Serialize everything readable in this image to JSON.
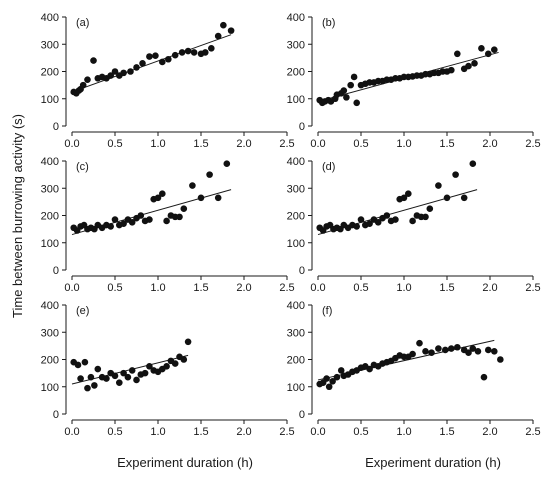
{
  "chart_data": {
    "type": "scatter",
    "shared_ylabel": "Time between burrowing activity (s)",
    "shared_xlabel": "Experiment duration (h)",
    "xlim": [
      0,
      2.5
    ],
    "xticks": [
      "0.0",
      "0.5",
      "1.0",
      "1.5",
      "2.0",
      "2.5"
    ],
    "ylim": [
      0,
      400
    ],
    "yticks": [
      "0",
      "100",
      "200",
      "300",
      "400"
    ],
    "grid": false,
    "panels": [
      {
        "label": "(a)",
        "trendline": [
          [
            0.0,
            125
          ],
          [
            1.85,
            335
          ]
        ],
        "points": [
          [
            0.02,
            125
          ],
          [
            0.05,
            120
          ],
          [
            0.08,
            130
          ],
          [
            0.1,
            135
          ],
          [
            0.13,
            150
          ],
          [
            0.18,
            170
          ],
          [
            0.25,
            240
          ],
          [
            0.3,
            175
          ],
          [
            0.35,
            180
          ],
          [
            0.4,
            175
          ],
          [
            0.45,
            185
          ],
          [
            0.5,
            200
          ],
          [
            0.55,
            185
          ],
          [
            0.6,
            195
          ],
          [
            0.68,
            200
          ],
          [
            0.75,
            215
          ],
          [
            0.82,
            230
          ],
          [
            0.9,
            255
          ],
          [
            0.97,
            258
          ],
          [
            1.05,
            235
          ],
          [
            1.12,
            245
          ],
          [
            1.2,
            260
          ],
          [
            1.28,
            270
          ],
          [
            1.35,
            275
          ],
          [
            1.42,
            270
          ],
          [
            1.5,
            265
          ],
          [
            1.55,
            270
          ],
          [
            1.62,
            285
          ],
          [
            1.7,
            330
          ],
          [
            1.76,
            370
          ],
          [
            1.85,
            350
          ]
        ]
      },
      {
        "label": "(b)",
        "trendline": [
          [
            0.0,
            90
          ],
          [
            2.1,
            270
          ]
        ],
        "points": [
          [
            0.02,
            95
          ],
          [
            0.05,
            85
          ],
          [
            0.08,
            90
          ],
          [
            0.12,
            95
          ],
          [
            0.15,
            90
          ],
          [
            0.2,
            100
          ],
          [
            0.22,
            115
          ],
          [
            0.27,
            120
          ],
          [
            0.3,
            130
          ],
          [
            0.33,
            105
          ],
          [
            0.38,
            150
          ],
          [
            0.42,
            180
          ],
          [
            0.45,
            85
          ],
          [
            0.5,
            150
          ],
          [
            0.55,
            155
          ],
          [
            0.6,
            160
          ],
          [
            0.65,
            160
          ],
          [
            0.7,
            165
          ],
          [
            0.75,
            165
          ],
          [
            0.8,
            170
          ],
          [
            0.85,
            170
          ],
          [
            0.9,
            175
          ],
          [
            0.95,
            175
          ],
          [
            1.0,
            180
          ],
          [
            1.05,
            180
          ],
          [
            1.1,
            182
          ],
          [
            1.15,
            185
          ],
          [
            1.2,
            185
          ],
          [
            1.25,
            190
          ],
          [
            1.3,
            190
          ],
          [
            1.35,
            195
          ],
          [
            1.4,
            195
          ],
          [
            1.45,
            200
          ],
          [
            1.5,
            200
          ],
          [
            1.55,
            205
          ],
          [
            1.62,
            265
          ],
          [
            1.7,
            210
          ],
          [
            1.75,
            220
          ],
          [
            1.82,
            230
          ],
          [
            1.9,
            285
          ],
          [
            1.98,
            265
          ],
          [
            2.05,
            280
          ]
        ]
      },
      {
        "label": "(c)",
        "trendline": [
          [
            0.0,
            130
          ],
          [
            1.85,
            295
          ]
        ],
        "points": [
          [
            0.02,
            155
          ],
          [
            0.06,
            145
          ],
          [
            0.1,
            160
          ],
          [
            0.14,
            165
          ],
          [
            0.18,
            150
          ],
          [
            0.22,
            155
          ],
          [
            0.26,
            150
          ],
          [
            0.3,
            165
          ],
          [
            0.35,
            155
          ],
          [
            0.4,
            165
          ],
          [
            0.45,
            160
          ],
          [
            0.5,
            185
          ],
          [
            0.55,
            165
          ],
          [
            0.6,
            170
          ],
          [
            0.65,
            185
          ],
          [
            0.7,
            175
          ],
          [
            0.75,
            190
          ],
          [
            0.8,
            200
          ],
          [
            0.85,
            180
          ],
          [
            0.9,
            185
          ],
          [
            0.95,
            260
          ],
          [
            1.0,
            265
          ],
          [
            1.05,
            280
          ],
          [
            1.1,
            180
          ],
          [
            1.15,
            200
          ],
          [
            1.2,
            195
          ],
          [
            1.25,
            195
          ],
          [
            1.3,
            225
          ],
          [
            1.4,
            310
          ],
          [
            1.5,
            265
          ],
          [
            1.6,
            350
          ],
          [
            1.7,
            265
          ],
          [
            1.8,
            390
          ]
        ]
      },
      {
        "label": "(d)",
        "trendline": [
          [
            0.0,
            130
          ],
          [
            1.85,
            295
          ]
        ],
        "points": [
          [
            0.02,
            155
          ],
          [
            0.06,
            145
          ],
          [
            0.1,
            160
          ],
          [
            0.14,
            165
          ],
          [
            0.18,
            150
          ],
          [
            0.22,
            155
          ],
          [
            0.26,
            150
          ],
          [
            0.3,
            165
          ],
          [
            0.35,
            155
          ],
          [
            0.4,
            165
          ],
          [
            0.45,
            160
          ],
          [
            0.5,
            185
          ],
          [
            0.55,
            165
          ],
          [
            0.6,
            170
          ],
          [
            0.65,
            185
          ],
          [
            0.7,
            175
          ],
          [
            0.75,
            190
          ],
          [
            0.8,
            200
          ],
          [
            0.85,
            180
          ],
          [
            0.9,
            185
          ],
          [
            0.95,
            260
          ],
          [
            1.0,
            265
          ],
          [
            1.05,
            280
          ],
          [
            1.1,
            180
          ],
          [
            1.15,
            200
          ],
          [
            1.2,
            195
          ],
          [
            1.25,
            195
          ],
          [
            1.3,
            225
          ],
          [
            1.4,
            310
          ],
          [
            1.5,
            265
          ],
          [
            1.6,
            350
          ],
          [
            1.7,
            265
          ],
          [
            1.8,
            390
          ]
        ]
      },
      {
        "label": "(e)",
        "trendline": [
          [
            0.0,
            110
          ],
          [
            1.35,
            215
          ]
        ],
        "points": [
          [
            0.02,
            190
          ],
          [
            0.07,
            180
          ],
          [
            0.1,
            130
          ],
          [
            0.15,
            190
          ],
          [
            0.18,
            95
          ],
          [
            0.22,
            135
          ],
          [
            0.26,
            105
          ],
          [
            0.3,
            165
          ],
          [
            0.35,
            135
          ],
          [
            0.4,
            130
          ],
          [
            0.45,
            150
          ],
          [
            0.5,
            140
          ],
          [
            0.55,
            115
          ],
          [
            0.6,
            150
          ],
          [
            0.65,
            135
          ],
          [
            0.7,
            160
          ],
          [
            0.75,
            125
          ],
          [
            0.8,
            145
          ],
          [
            0.85,
            150
          ],
          [
            0.9,
            175
          ],
          [
            0.95,
            160
          ],
          [
            1.0,
            155
          ],
          [
            1.05,
            165
          ],
          [
            1.1,
            175
          ],
          [
            1.15,
            195
          ],
          [
            1.2,
            185
          ],
          [
            1.25,
            210
          ],
          [
            1.3,
            200
          ],
          [
            1.35,
            265
          ]
        ]
      },
      {
        "label": "(f)",
        "trendline": [
          [
            0.0,
            125
          ],
          [
            2.05,
            270
          ]
        ],
        "points": [
          [
            0.02,
            110
          ],
          [
            0.06,
            115
          ],
          [
            0.1,
            130
          ],
          [
            0.13,
            100
          ],
          [
            0.17,
            120
          ],
          [
            0.22,
            135
          ],
          [
            0.27,
            160
          ],
          [
            0.3,
            140
          ],
          [
            0.35,
            145
          ],
          [
            0.4,
            155
          ],
          [
            0.45,
            160
          ],
          [
            0.5,
            170
          ],
          [
            0.55,
            175
          ],
          [
            0.6,
            165
          ],
          [
            0.65,
            180
          ],
          [
            0.7,
            175
          ],
          [
            0.75,
            185
          ],
          [
            0.8,
            190
          ],
          [
            0.85,
            195
          ],
          [
            0.9,
            205
          ],
          [
            0.95,
            215
          ],
          [
            1.0,
            210
          ],
          [
            1.05,
            210
          ],
          [
            1.1,
            220
          ],
          [
            1.18,
            260
          ],
          [
            1.25,
            230
          ],
          [
            1.32,
            225
          ],
          [
            1.4,
            240
          ],
          [
            1.48,
            235
          ],
          [
            1.55,
            240
          ],
          [
            1.62,
            245
          ],
          [
            1.7,
            235
          ],
          [
            1.75,
            225
          ],
          [
            1.8,
            240
          ],
          [
            1.86,
            230
          ],
          [
            1.93,
            135
          ],
          [
            1.98,
            235
          ],
          [
            2.05,
            230
          ],
          [
            2.12,
            200
          ]
        ]
      }
    ]
  }
}
